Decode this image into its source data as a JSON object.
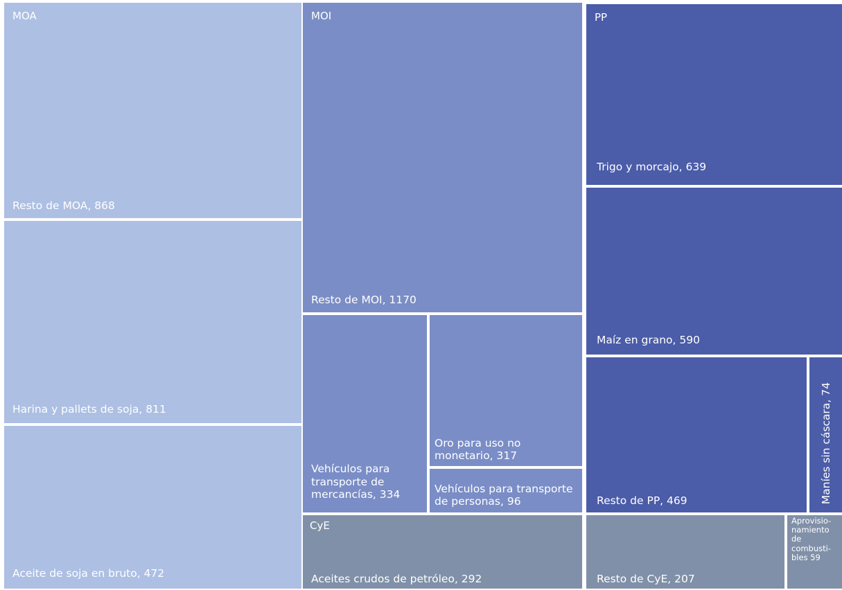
{
  "chart_data": {
    "type": "treemap",
    "colors": {
      "MOA": "#adbfe3",
      "MOI": "#7a8dc6",
      "PP": "#4b5ca8",
      "CyE": "#8090a8",
      "border": "#ffffff"
    },
    "groups": [
      {
        "name": "MOA",
        "items": [
          {
            "label": "Resto de MOA, 868",
            "name": "Resto de MOA",
            "value": 868
          },
          {
            "label": "Harina y pallets de soja, 811",
            "name": "Harina y pallets de soja",
            "value": 811
          },
          {
            "label": "Aceite de soja en bruto, 472",
            "name": "Aceite de soja en bruto",
            "value": 472
          }
        ]
      },
      {
        "name": "MOI",
        "items": [
          {
            "label": "Resto de MOI, 1170",
            "name": "Resto de MOI",
            "value": 1170
          },
          {
            "label": "Vehículos para transporte de mercancías, 334",
            "name": "Vehículos para transporte de mercancías",
            "value": 334
          },
          {
            "label": "Oro para uso no monetario, 317",
            "name": "Oro para uso no monetario",
            "value": 317
          },
          {
            "label": "Vehículos para transporte de personas, 96",
            "name": "Vehículos para transporte de personas",
            "value": 96
          }
        ]
      },
      {
        "name": "PP",
        "items": [
          {
            "label": "Trigo y morcajo, 639",
            "name": "Trigo y morcajo",
            "value": 639
          },
          {
            "label": "Maíz en grano, 590",
            "name": "Maíz en grano",
            "value": 590
          },
          {
            "label": "Resto de PP, 469",
            "name": "Resto de PP",
            "value": 469
          },
          {
            "label": "Maníes sin cáscara, 74",
            "name": "Maníes sin cáscara",
            "value": 74
          }
        ]
      },
      {
        "name": "CyE",
        "items": [
          {
            "label": "Aceites crudos de petróleo, 292",
            "name": "Aceites crudos de petróleo",
            "value": 292
          },
          {
            "label": "Resto de CyE, 207",
            "name": "Resto de CyE",
            "value": 207
          },
          {
            "label": "Aprovisio-namiento de combusti-bles 59",
            "name": "Aprovisionamiento de combustibles",
            "value": 59
          }
        ]
      }
    ]
  }
}
